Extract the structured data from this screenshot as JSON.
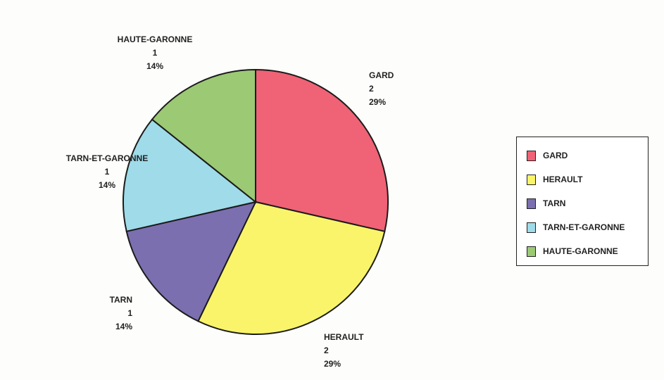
{
  "chart_data": {
    "type": "pie",
    "slices": [
      {
        "label": "GARD",
        "value": 2,
        "percent": "29%",
        "color": "#f06275"
      },
      {
        "label": "HERAULT",
        "value": 2,
        "percent": "29%",
        "color": "#faf46a"
      },
      {
        "label": "TARN",
        "value": 1,
        "percent": "14%",
        "color": "#7b6fb0"
      },
      {
        "label": "TARN-ET-GARONNE",
        "value": 1,
        "percent": "14%",
        "color": "#9fdbe9"
      },
      {
        "label": "HAUTE-GARONNE",
        "value": 1,
        "percent": "14%",
        "color": "#9bc974"
      }
    ],
    "legend_position": "right"
  }
}
